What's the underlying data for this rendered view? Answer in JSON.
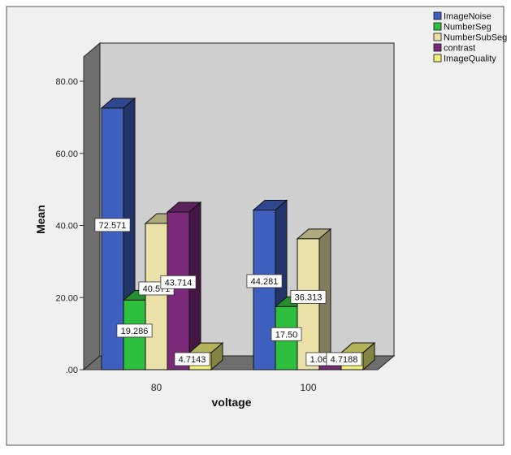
{
  "chart_data": {
    "type": "bar",
    "title": "",
    "xlabel": "voltage",
    "ylabel": "Mean",
    "ylim": [
      0,
      80
    ],
    "yticks": [
      ".00",
      "20.00",
      "40.00",
      "60.00",
      "80.00"
    ],
    "categories": [
      "80",
      "100"
    ],
    "legend_position": "top-right",
    "series": [
      {
        "name": "ImageNoise",
        "color": "#3f5fbf",
        "values": [
          72.571,
          44.281
        ],
        "labels": [
          "72.571",
          "44.281"
        ]
      },
      {
        "name": "NumberSeg",
        "color": "#2fbf3f",
        "values": [
          19.286,
          17.5
        ],
        "labels": [
          "19.286",
          "17.50"
        ]
      },
      {
        "name": "NumberSubSeg",
        "color": "#e9e1a8",
        "values": [
          40.571,
          36.313
        ],
        "labels": [
          "40.571",
          "36.313"
        ]
      },
      {
        "name": "contrast",
        "color": "#7a2a78",
        "values": [
          43.714,
          1.0625
        ],
        "labels": [
          "43.714",
          "1.0625"
        ]
      },
      {
        "name": "ImageQuality",
        "color": "#eeee78",
        "values": [
          4.7143,
          4.7188
        ],
        "labels": [
          "4.7143",
          "4.7188"
        ]
      }
    ],
    "grid": false,
    "background": "#cfcfcf",
    "plot_frame_color": "#f0f0f0"
  }
}
